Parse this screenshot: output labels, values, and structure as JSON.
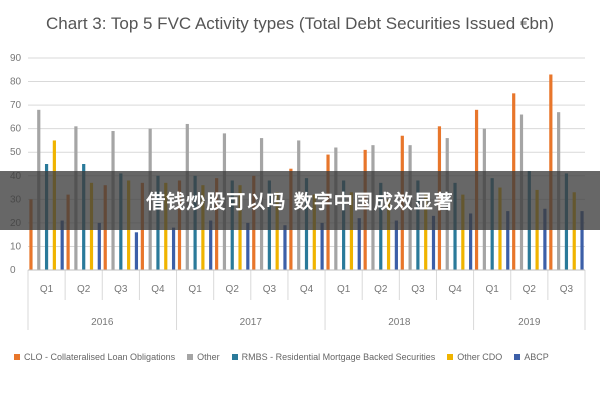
{
  "chart_data": {
    "type": "bar",
    "title": "Chart 3: Top 5 FVC Activity types (Total Debt Securities Issued €bn)",
    "xlabel": "",
    "ylabel": "",
    "ylim": [
      0,
      90
    ],
    "yticks": [
      0,
      10,
      20,
      30,
      40,
      50,
      60,
      70,
      80,
      90
    ],
    "grid": true,
    "legend_position": "bottom",
    "categories": [
      "Q1",
      "Q2",
      "Q3",
      "Q4",
      "Q1",
      "Q2",
      "Q3",
      "Q4",
      "Q1",
      "Q2",
      "Q3",
      "Q4",
      "Q1",
      "Q2",
      "Q3"
    ],
    "groups": [
      {
        "label": "2016",
        "count": 4
      },
      {
        "label": "2017",
        "count": 4
      },
      {
        "label": "2018",
        "count": 4
      },
      {
        "label": "2019",
        "count": 3
      }
    ],
    "series": [
      {
        "name": "CLO - Collateralised Loan Obligations",
        "color": "#e8762b",
        "values": [
          30,
          32,
          36,
          37,
          38,
          39,
          40,
          43,
          49,
          51,
          57,
          61,
          68,
          75,
          83
        ]
      },
      {
        "name": "Other",
        "color": "#a5a5a5",
        "values": [
          68,
          61,
          59,
          60,
          62,
          58,
          56,
          55,
          52,
          53,
          53,
          56,
          60,
          66,
          67
        ]
      },
      {
        "name": "RMBS - Residential Mortgage Backed Securities",
        "color": "#2a7a9a",
        "values": [
          45,
          45,
          41,
          40,
          40,
          38,
          38,
          39,
          38,
          37,
          38,
          37,
          39,
          42,
          41
        ]
      },
      {
        "name": "Other CDO",
        "color": "#f0b400",
        "values": [
          55,
          37,
          38,
          37,
          36,
          36,
          33,
          32,
          33,
          30,
          32,
          32,
          35,
          34,
          33
        ]
      },
      {
        "name": "ABCP",
        "color": "#3c5fa8",
        "values": [
          21,
          20,
          16,
          18,
          21,
          20,
          19,
          20,
          22,
          21,
          23,
          24,
          25,
          26,
          25
        ]
      }
    ]
  },
  "banner": {
    "text": "借钱炒股可以吗 数字中国成效显著"
  }
}
